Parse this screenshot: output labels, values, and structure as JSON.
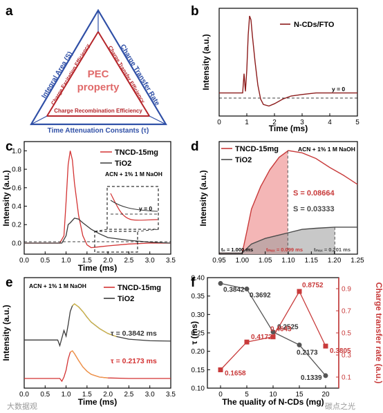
{
  "watermarks": [
    "大数据观",
    "碳点之光"
  ],
  "panel_a": {
    "letter": "a",
    "center_label": [
      "PEC",
      "property"
    ],
    "outer_left": "Integral Area (S)",
    "outer_right": "Charge Transfer Rate",
    "outer_bottom": "Time Attenuation Constants (τ)",
    "inner_left": "Charge Excitation Efficiency",
    "inner_right": "Charge Transfer Efficiency",
    "inner_bottom": "Charge Recombination Efficiency",
    "colors": {
      "outer": "#2f4fa6",
      "inner": "#b5262b",
      "center": "#e06a6a"
    }
  },
  "chart_data": [
    {
      "panel": "b",
      "type": "line",
      "xlabel": "Time (ms)",
      "ylabel": "Intensity (a.u.)",
      "xlim": [
        0,
        5
      ],
      "xticks": [
        0,
        1,
        2,
        3,
        4,
        5
      ],
      "legend": "N-CDs/FTO",
      "annotation": "y = 0",
      "series": [
        {
          "name": "N-CDs/FTO",
          "color": "#8b1a1a",
          "x": [
            0,
            0.85,
            0.9,
            0.95,
            1.0,
            1.05,
            1.1,
            1.15,
            1.2,
            1.3,
            1.4,
            1.5,
            1.6,
            1.8,
            2.0,
            2.3,
            2.6,
            3.0,
            3.5,
            4.0,
            4.5,
            5.0
          ],
          "y": [
            0,
            0,
            0.25,
            0.02,
            0.3,
            0.75,
            1.0,
            0.95,
            0.75,
            0.4,
            0.1,
            -0.08,
            -0.15,
            -0.17,
            -0.14,
            -0.08,
            -0.04,
            -0.02,
            0,
            0,
            0,
            0
          ]
        }
      ]
    },
    {
      "panel": "c",
      "type": "line",
      "xlabel": "Time (ms)",
      "ylabel": "Intensity (a.u.)",
      "xlim": [
        0,
        3.5
      ],
      "ylim": [
        -0.12,
        1.1
      ],
      "xticks": [
        0.0,
        0.5,
        1.0,
        1.5,
        2.0,
        2.5,
        3.0,
        3.5
      ],
      "yticks": [
        0.0,
        0.2,
        0.4,
        0.6,
        0.8,
        1.0
      ],
      "condition": "ACN + 1% 1 M NaOH",
      "inset_annotation": "y = 0",
      "series": [
        {
          "name": "TNCD-15mg",
          "color": "#d33232",
          "x": [
            0,
            0.85,
            0.95,
            1.0,
            1.05,
            1.1,
            1.15,
            1.2,
            1.3,
            1.4,
            1.5,
            1.6,
            1.8,
            2.0,
            2.5,
            3.0,
            3.5
          ],
          "y": [
            0,
            0,
            0.08,
            0.45,
            0.85,
            1.0,
            0.9,
            0.65,
            0.3,
            0.08,
            -0.02,
            -0.05,
            -0.04,
            -0.03,
            -0.01,
            0,
            0
          ]
        },
        {
          "name": "TiO2",
          "color": "#3a3a3a",
          "x": [
            0,
            0.9,
            1.0,
            1.05,
            1.1,
            1.2,
            1.3,
            1.4,
            1.6,
            1.8,
            2.0,
            2.5,
            3.0,
            3.5
          ],
          "y": [
            0,
            0,
            0.08,
            0.2,
            0.22,
            0.27,
            0.26,
            0.22,
            0.15,
            0.1,
            0.06,
            0.03,
            0.01,
            0
          ]
        }
      ]
    },
    {
      "panel": "d",
      "type": "area",
      "xlim": [
        0.95,
        1.25
      ],
      "ylim": [
        0,
        1
      ],
      "xticks": [
        0.95,
        1.0,
        1.05,
        1.1,
        1.15,
        1.2,
        1.25
      ],
      "ylabel": "Intensity (a.u.)",
      "condition": "ACN + 1% 1 M NaOH",
      "series": [
        {
          "name": "TNCD-15mg",
          "color": "#c83a3a",
          "x": [
            0.95,
            1.0,
            1.01,
            1.02,
            1.04,
            1.06,
            1.08,
            1.1,
            1.13,
            1.16,
            1.19,
            1.22,
            1.25
          ],
          "y": [
            0.01,
            0.01,
            0.2,
            0.4,
            0.6,
            0.75,
            0.86,
            0.92,
            0.9,
            0.85,
            0.77,
            0.7,
            0.62
          ]
        },
        {
          "name": "TiO2",
          "color": "#4a4a4a",
          "x": [
            0.95,
            1.0,
            1.01,
            1.02,
            1.05,
            1.08,
            1.1,
            1.13,
            1.16,
            1.2,
            1.25
          ],
          "y": [
            0.01,
            0.01,
            0.05,
            0.09,
            0.14,
            0.17,
            0.19,
            0.22,
            0.23,
            0.24,
            0.24
          ]
        }
      ],
      "annotations": {
        "S_TNCD": "S = 0.08664",
        "S_TiO2": "S = 0.03333",
        "t0": "t₀ = 1.000 ms",
        "tmax_TNCD": "tₘₐₓ = 0.099 ms",
        "tmax_TiO2": "tₘₐₓ = 0.201 ms"
      },
      "t0": 1.0,
      "tmax_TNCD_abs": 1.099,
      "tmax_TiO2_abs": 1.201
    },
    {
      "panel": "e",
      "type": "line",
      "xlabel": "Time (ms)",
      "ylabel": "Intensity (a.u.)",
      "xlim": [
        0,
        3.5
      ],
      "xticks": [
        0.0,
        0.5,
        1.0,
        1.5,
        2.0,
        2.5,
        3.0,
        3.5
      ],
      "condition": "ACN + 1% 1 M NaOH",
      "series": [
        {
          "name": "TNCD-15mg",
          "color": "#d33232",
          "tau": "τ = 0.2173 ms",
          "x": [
            0,
            0.85,
            0.9,
            0.95,
            1.0,
            1.05,
            1.1,
            1.15,
            1.2,
            1.3,
            1.4,
            1.5,
            1.6,
            1.8,
            2.0,
            2.5,
            3.0,
            3.5
          ],
          "y": [
            0,
            0,
            -0.1,
            0.05,
            0.3,
            0.7,
            0.95,
            1.0,
            0.9,
            0.65,
            0.42,
            0.26,
            0.15,
            0.05,
            0.02,
            0,
            0,
            0
          ]
        },
        {
          "name": "TiO2",
          "color": "#3a3a3a",
          "tau": "τ = 0.3842 ms",
          "x": [
            0,
            0.8,
            0.85,
            0.9,
            0.95,
            1.0,
            1.05,
            1.1,
            1.15,
            1.2,
            1.3,
            1.4,
            1.5,
            1.6,
            1.8,
            2.0,
            2.2,
            2.5,
            3.0,
            3.5
          ],
          "y": [
            0.05,
            0.05,
            -0.1,
            0.1,
            0.3,
            0.15,
            0.45,
            0.8,
            0.95,
            1.0,
            0.92,
            0.8,
            0.65,
            0.52,
            0.35,
            0.22,
            0.14,
            0.07,
            0.03,
            0.02
          ]
        }
      ]
    },
    {
      "panel": "f",
      "type": "line",
      "xlabel": "The quality of N-CDs (mg)",
      "ylabel": "τ (ms)",
      "ylabel_right": "Charge transfer rate (a.u.)",
      "xlim": [
        -2.5,
        22.5
      ],
      "ylim": [
        0.1,
        0.4
      ],
      "ylim_right": [
        0.0,
        1.0
      ],
      "xticks": [
        0,
        5,
        10,
        15,
        20
      ],
      "yticks": [
        0.1,
        0.15,
        0.2,
        0.25,
        0.3,
        0.35,
        0.4
      ],
      "yticks_right": [
        0.1,
        0.3,
        0.5,
        0.7,
        0.9
      ],
      "series": [
        {
          "name": "τ",
          "axis": "left",
          "color": "#555555",
          "x": [
            0,
            5,
            10,
            15,
            20
          ],
          "y": [
            0.3842,
            0.3692,
            0.2525,
            0.2173,
            0.1339
          ],
          "labels": [
            "0.3842",
            "0.3692",
            "0.2525",
            "0.2173",
            "0.1339"
          ]
        },
        {
          "name": "Charge transfer rate",
          "axis": "right",
          "color": "#c83a3a",
          "x": [
            0,
            5,
            10,
            15,
            20
          ],
          "y": [
            0.1658,
            0.4172,
            0.4643,
            0.8752,
            0.3805
          ],
          "labels": [
            "0.1658",
            "0.4172",
            "0.4643",
            "0.8752",
            "0.3805"
          ]
        }
      ]
    }
  ],
  "panel_letters": [
    "a",
    "b",
    "c",
    "d",
    "e",
    "f"
  ]
}
